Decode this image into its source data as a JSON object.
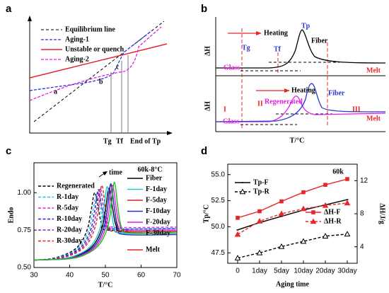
{
  "chart_data": [
    {
      "type": "diagram",
      "panel_label": "a",
      "legend": [
        "Equilibrium line",
        "Aging-1",
        "Unstable or quench",
        "Aging-2"
      ],
      "points": [
        "a",
        "b",
        "c"
      ],
      "x_markers": [
        "Tg",
        "Tf",
        "End of Tp"
      ]
    },
    {
      "type": "dsc",
      "panel_label": "b",
      "x_label": "T/°C",
      "top": {
        "y_label": "ΔH",
        "arrow": "Heating",
        "glass": "Glass",
        "markers": [
          "Tg",
          "Tf",
          "Tp"
        ],
        "curve": "Fiber",
        "melt": "Melt"
      },
      "bottom": {
        "y_label": "ΔH",
        "arrow": "Heating",
        "glass": "Glass",
        "regions": [
          "I",
          "II",
          "III"
        ],
        "curves": [
          "Regenerated",
          "Fiber"
        ],
        "melt": "Melt"
      }
    },
    {
      "type": "line",
      "panel_label": "c",
      "title": "60k-8°C",
      "annotations": [
        "time",
        "Melt"
      ],
      "x_label": "T/°C",
      "y_label": "Endo",
      "smooth": true,
      "xlim": [
        30,
        70
      ],
      "xticks": [
        30,
        40,
        50,
        60,
        70
      ],
      "ylim": [
        0.5,
        1.2
      ],
      "yticks": [
        {
          "value": 0.5,
          "label": "0.50"
        },
        0.75,
        {
          "value": 1,
          "label": "1.00"
        }
      ],
      "series": [
        {
          "name": "Regenerated",
          "color": "#000000",
          "style": "dashed",
          "x": [
            30,
            35,
            40,
            43,
            45,
            46,
            47,
            48,
            49,
            51,
            70
          ],
          "values": [
            0.55,
            0.56,
            0.6,
            0.66,
            0.76,
            0.88,
            1.0,
            0.9,
            0.79,
            0.75,
            0.75
          ]
        },
        {
          "name": "R-1day",
          "color": "#22c4d8",
          "style": "dashed",
          "x": [
            30,
            35.5,
            40.5,
            43.5,
            45.5,
            46.5,
            47.5,
            48.5,
            49.5,
            51.5,
            70
          ],
          "values": [
            0.55,
            0.56,
            0.6,
            0.66,
            0.76,
            0.88,
            0.98,
            0.9,
            0.8,
            0.76,
            0.76
          ]
        },
        {
          "name": "R-5day",
          "color": "#e020e0",
          "style": "dashed",
          "x": [
            30,
            36,
            41,
            44,
            46,
            47,
            48,
            49,
            50,
            52,
            70
          ],
          "values": [
            0.55,
            0.56,
            0.6,
            0.66,
            0.76,
            0.88,
            1.0,
            0.9,
            0.81,
            0.77,
            0.77
          ]
        },
        {
          "name": "R-10day",
          "color": "#2030d0",
          "style": "dashed",
          "x": [
            30,
            36,
            41,
            44,
            46,
            47,
            48,
            49,
            50,
            52,
            70
          ],
          "values": [
            0.55,
            0.56,
            0.6,
            0.66,
            0.76,
            0.88,
            1.02,
            0.9,
            0.8,
            0.76,
            0.76
          ]
        },
        {
          "name": "R-20day",
          "color": "#9020c0",
          "style": "dashed",
          "x": [
            30,
            36.5,
            41.5,
            44.5,
            46.5,
            47.5,
            48.5,
            49.5,
            50.5,
            52.5,
            70
          ],
          "values": [
            0.55,
            0.56,
            0.6,
            0.66,
            0.76,
            0.88,
            1.03,
            0.9,
            0.79,
            0.75,
            0.75
          ]
        },
        {
          "name": "R-30day",
          "color": "#e02020",
          "style": "dashed",
          "x": [
            30,
            37,
            42,
            45,
            47,
            48,
            49,
            50,
            51,
            53,
            70
          ],
          "values": [
            0.55,
            0.56,
            0.6,
            0.66,
            0.76,
            0.88,
            1.05,
            0.9,
            0.78,
            0.74,
            0.74
          ]
        },
        {
          "name": "Fiber",
          "color": "#000000",
          "style": "solid",
          "x": [
            30,
            39,
            44,
            47,
            49,
            50,
            51,
            52,
            53,
            55,
            70
          ],
          "values": [
            0.55,
            0.56,
            0.6,
            0.66,
            0.76,
            0.88,
            1.03,
            0.9,
            0.78,
            0.74,
            0.74
          ]
        },
        {
          "name": "F-1day",
          "color": "#22c4d8",
          "style": "solid",
          "x": [
            30,
            38.5,
            43.5,
            46.5,
            48.5,
            49.5,
            50.5,
            51.5,
            52.5,
            54.5,
            70
          ],
          "values": [
            0.55,
            0.56,
            0.6,
            0.66,
            0.76,
            0.88,
            1.04,
            0.9,
            0.77,
            0.73,
            0.73
          ]
        },
        {
          "name": "F-5day",
          "color": "#e02020",
          "style": "solid",
          "x": [
            30,
            39.5,
            44.5,
            47.5,
            49.5,
            50.5,
            51.5,
            52.5,
            53.5,
            55.5,
            70
          ],
          "values": [
            0.55,
            0.56,
            0.6,
            0.66,
            0.76,
            0.88,
            1.05,
            0.9,
            0.78,
            0.74,
            0.74
          ]
        },
        {
          "name": "F-10day",
          "color": "#2030d0",
          "style": "solid",
          "x": [
            30,
            39.5,
            44.5,
            47.5,
            49.5,
            50.5,
            51.5,
            52.5,
            53.5,
            55.5,
            70
          ],
          "values": [
            0.55,
            0.56,
            0.6,
            0.66,
            0.76,
            0.88,
            1.06,
            0.9,
            0.76,
            0.72,
            0.72
          ]
        },
        {
          "name": "F-20day",
          "color": "#e020e0",
          "style": "solid",
          "x": [
            30,
            40,
            45,
            48,
            50,
            51,
            52,
            53,
            54,
            56,
            70
          ],
          "values": [
            0.55,
            0.56,
            0.6,
            0.66,
            0.76,
            0.88,
            1.05,
            0.9,
            0.79,
            0.75,
            0.75
          ]
        },
        {
          "name": "F-30day",
          "color": "#20c020",
          "style": "solid",
          "x": [
            30,
            40.5,
            45.5,
            48.5,
            50.5,
            51.5,
            52.5,
            53.5,
            54.5,
            56.5,
            70
          ],
          "values": [
            0.55,
            0.56,
            0.6,
            0.66,
            0.76,
            0.88,
            1.07,
            0.9,
            0.77,
            0.73,
            0.73
          ]
        }
      ]
    },
    {
      "type": "line",
      "panel_label": "d",
      "title": "60k",
      "x_label": "Aging time",
      "y_label": "Tp/°C",
      "y2_label": "ΔH/J/g",
      "categories": [
        "0",
        "1day",
        "5day",
        "10day",
        "20day",
        "30day"
      ],
      "ylim": [
        46.5,
        56
      ],
      "yticks": [
        47.5,
        {
          "value": 50,
          "label": "50.0"
        },
        52.5,
        {
          "value": 55,
          "label": "55.0"
        }
      ],
      "y2lim": [
        2,
        14
      ],
      "y2ticks": [
        4,
        8,
        12
      ],
      "series": [
        {
          "name": "Tp-F",
          "color": "#000000",
          "style": "solid",
          "marker": "none",
          "values": [
            49.7,
            50.4,
            51.0,
            51.6,
            52.1,
            52.6
          ]
        },
        {
          "name": "Tp-R",
          "color": "#000000",
          "style": "dashed",
          "marker": "triangle-open",
          "values": [
            47.0,
            47.5,
            48.1,
            48.6,
            49.1,
            49.3
          ]
        },
        {
          "name": "ΔH-F",
          "color": "#e8262a",
          "style": "solid",
          "marker": "square",
          "axis": "y2",
          "values": [
            7.5,
            8.3,
            9.5,
            10.6,
            11.5,
            12.2
          ]
        },
        {
          "name": "ΔH-R",
          "color": "#e8262a",
          "style": "dashed",
          "marker": "triangle",
          "axis": "y2",
          "values": [
            5.5,
            7.1,
            8.0,
            8.6,
            9.0,
            9.3
          ]
        }
      ]
    }
  ]
}
